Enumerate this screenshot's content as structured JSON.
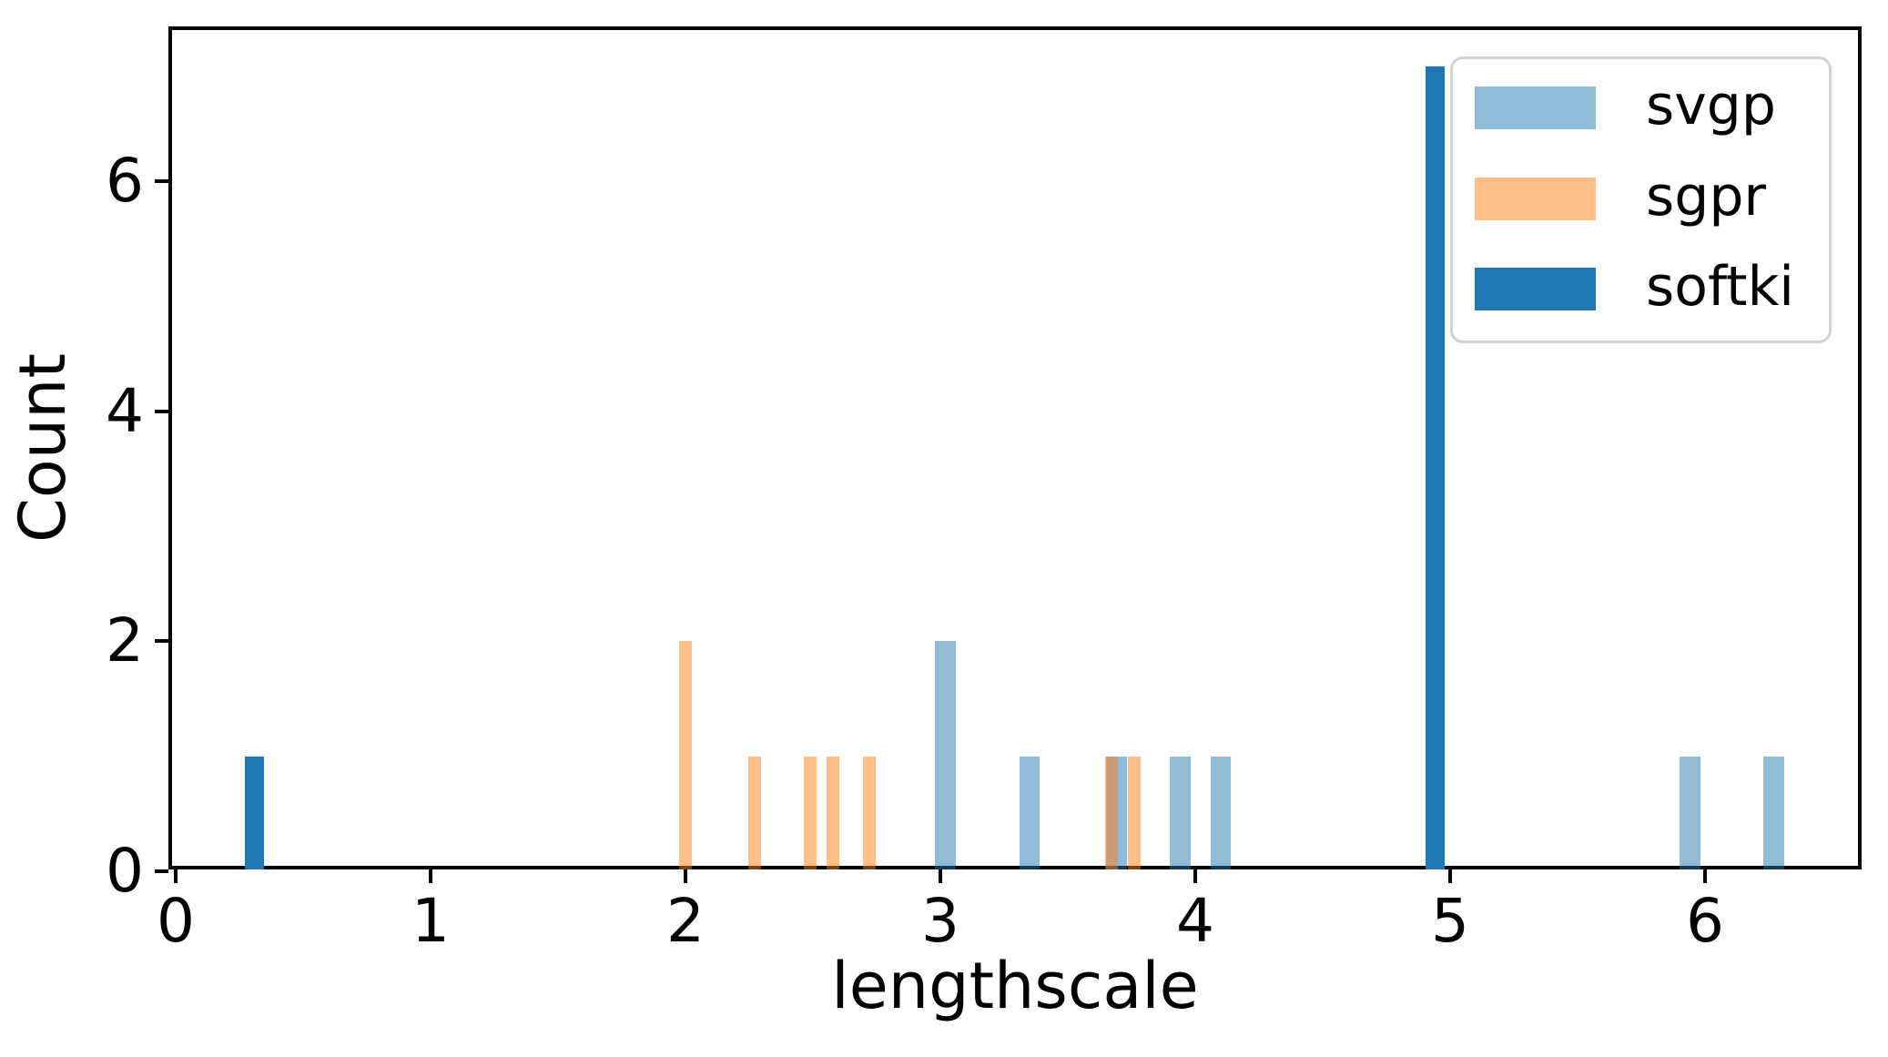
{
  "chart_data": {
    "type": "bar",
    "subtype": "histogram",
    "title": "",
    "xlabel": "lengthscale",
    "ylabel": "Count",
    "xlim": [
      -0.03,
      6.61
    ],
    "ylim": [
      0,
      7.35
    ],
    "xticks": [
      0,
      1,
      2,
      3,
      4,
      5,
      6
    ],
    "yticks": [
      0,
      2,
      4,
      6
    ],
    "grid": false,
    "legend_position": "upper right",
    "background_color": "#ffffff",
    "spine_color": "#000000",
    "series": [
      {
        "name": "svgp",
        "color": "#1f77b4",
        "alpha": 0.5,
        "bar_width_units": 0.082,
        "bars": [
          {
            "x": 3.02,
            "count": 2
          },
          {
            "x": 3.35,
            "count": 1
          },
          {
            "x": 3.69,
            "count": 1
          },
          {
            "x": 3.94,
            "count": 1
          },
          {
            "x": 4.1,
            "count": 1
          },
          {
            "x": 5.94,
            "count": 1
          },
          {
            "x": 6.27,
            "count": 1
          }
        ]
      },
      {
        "name": "sgpr",
        "color": "#ff7f0e",
        "alpha": 0.5,
        "bar_width_units": 0.05,
        "bars": [
          {
            "x": 2.0,
            "count": 2
          },
          {
            "x": 2.27,
            "count": 1
          },
          {
            "x": 2.49,
            "count": 1
          },
          {
            "x": 2.58,
            "count": 1
          },
          {
            "x": 2.72,
            "count": 1
          },
          {
            "x": 3.67,
            "count": 1
          },
          {
            "x": 3.76,
            "count": 1
          }
        ]
      },
      {
        "name": "softki",
        "color": "#1f77b4",
        "alpha": 1.0,
        "bar_width_units": 0.075,
        "bars": [
          {
            "x": 0.31,
            "count": 1
          },
          {
            "x": 4.94,
            "count": 7
          }
        ]
      }
    ]
  }
}
